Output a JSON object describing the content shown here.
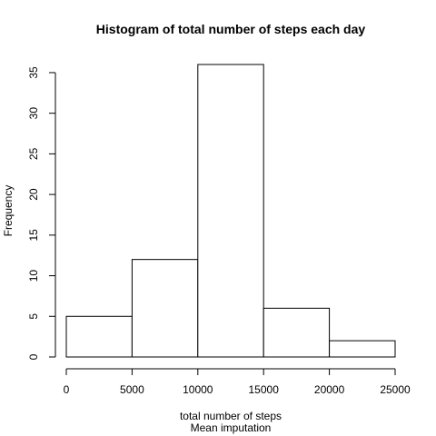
{
  "chart_data": {
    "type": "bar",
    "title": "Histogram of total number of steps each day",
    "xlabel": "total number of steps",
    "subtitle": "Mean imputation",
    "ylabel": "Frequency",
    "bins": [
      {
        "from": 0,
        "to": 5000,
        "value": 5
      },
      {
        "from": 5000,
        "to": 10000,
        "value": 12
      },
      {
        "from": 10000,
        "to": 15000,
        "value": 36
      },
      {
        "from": 15000,
        "to": 20000,
        "value": 6
      },
      {
        "from": 20000,
        "to": 25000,
        "value": 2
      }
    ],
    "xlim": [
      0,
      25000
    ],
    "ylim": [
      0,
      36
    ],
    "x_ticks": [
      0,
      5000,
      10000,
      15000,
      20000,
      25000
    ],
    "y_ticks": [
      0,
      5,
      10,
      15,
      20,
      25,
      30,
      35
    ],
    "x_tick_labels": [
      "0",
      "5000",
      "10000",
      "15000",
      "20000",
      "25000"
    ],
    "y_tick_labels": [
      "0",
      "5",
      "10",
      "15",
      "20",
      "25",
      "30",
      "35"
    ],
    "grid": false,
    "legend": "none",
    "colors": {
      "background": "#ffffff",
      "bar_fill": "#ffffff",
      "bar_stroke": "#000000",
      "axis": "#000000",
      "text": "#000000"
    }
  }
}
